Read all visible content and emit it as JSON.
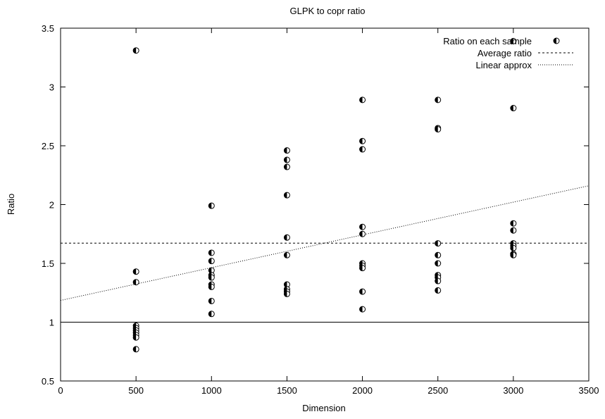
{
  "chart_data": {
    "type": "scatter",
    "title": "GLPK to copr ratio",
    "xlabel": "Dimension",
    "ylabel": "Ratio",
    "xlim": [
      0,
      3500
    ],
    "ylim": [
      0.5,
      3.5
    ],
    "xticks": [
      "0",
      "500",
      "1000",
      "1500",
      "2000",
      "2500",
      "3000",
      "3500"
    ],
    "yticks": [
      "0.5",
      "1",
      "1.5",
      "2",
      "2.5",
      "3",
      "3.5"
    ],
    "legend_position": "top-right",
    "grid": false,
    "series": [
      {
        "name": "Ratio on each sample",
        "kind": "points",
        "points": [
          [
            500,
            3.31
          ],
          [
            500,
            1.43
          ],
          [
            500,
            1.34
          ],
          [
            500,
            0.97
          ],
          [
            500,
            0.95
          ],
          [
            500,
            0.93
          ],
          [
            500,
            0.91
          ],
          [
            500,
            0.89
          ],
          [
            500,
            0.87
          ],
          [
            500,
            0.77
          ],
          [
            1000,
            1.99
          ],
          [
            1000,
            1.59
          ],
          [
            1000,
            1.52
          ],
          [
            1000,
            1.44
          ],
          [
            1000,
            1.4
          ],
          [
            1000,
            1.38
          ],
          [
            1000,
            1.32
          ],
          [
            1000,
            1.3
          ],
          [
            1000,
            1.18
          ],
          [
            1000,
            1.07
          ],
          [
            1500,
            2.46
          ],
          [
            1500,
            2.38
          ],
          [
            1500,
            2.32
          ],
          [
            1500,
            2.08
          ],
          [
            1500,
            1.72
          ],
          [
            1500,
            1.57
          ],
          [
            1500,
            1.32
          ],
          [
            1500,
            1.28
          ],
          [
            1500,
            1.26
          ],
          [
            1500,
            1.24
          ],
          [
            2000,
            2.89
          ],
          [
            2000,
            2.54
          ],
          [
            2000,
            2.47
          ],
          [
            2000,
            1.81
          ],
          [
            2000,
            1.75
          ],
          [
            2000,
            1.5
          ],
          [
            2000,
            1.48
          ],
          [
            2000,
            1.46
          ],
          [
            2000,
            1.26
          ],
          [
            2000,
            1.11
          ],
          [
            2500,
            2.89
          ],
          [
            2500,
            2.65
          ],
          [
            2500,
            2.64
          ],
          [
            2500,
            1.67
          ],
          [
            2500,
            1.57
          ],
          [
            2500,
            1.5
          ],
          [
            2500,
            1.4
          ],
          [
            2500,
            1.38
          ],
          [
            2500,
            1.35
          ],
          [
            2500,
            1.27
          ],
          [
            3000,
            3.39
          ],
          [
            3000,
            2.82
          ],
          [
            3000,
            1.84
          ],
          [
            3000,
            1.78
          ],
          [
            3000,
            1.67
          ],
          [
            3000,
            1.65
          ],
          [
            3000,
            1.63
          ],
          [
            3000,
            1.58
          ],
          [
            3000,
            1.58
          ],
          [
            3000,
            1.57
          ]
        ]
      },
      {
        "name": "Average ratio",
        "kind": "line",
        "style": "dashed",
        "x": [
          0,
          3500
        ],
        "y": [
          1.672,
          1.672
        ]
      },
      {
        "name": "Linear approx",
        "kind": "line",
        "style": "dotted",
        "x": [
          0,
          3500
        ],
        "y": [
          1.185,
          2.16
        ]
      },
      {
        "name": "",
        "kind": "line",
        "style": "solid",
        "x": [
          0,
          3500
        ],
        "y": [
          1.0,
          1.0
        ]
      }
    ]
  }
}
